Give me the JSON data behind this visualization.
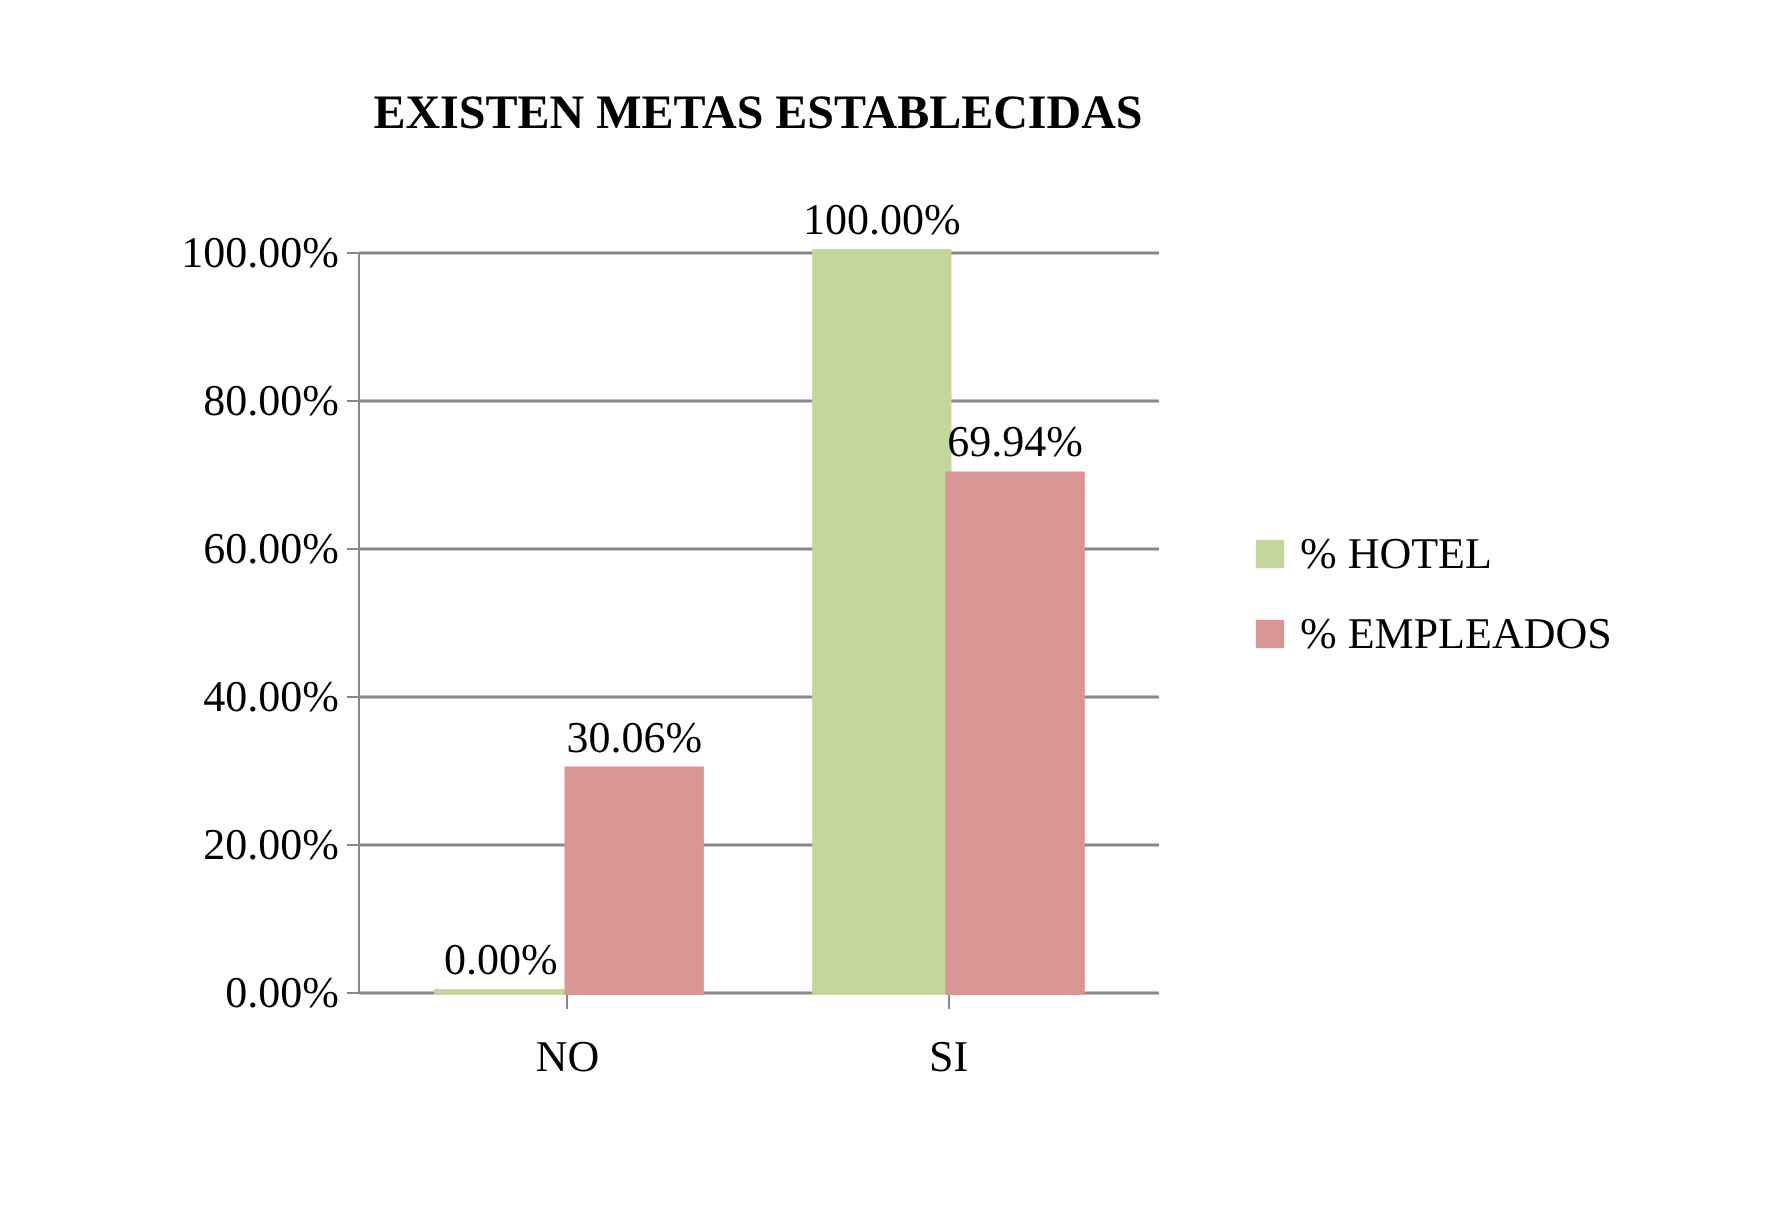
{
  "chart_data": {
    "type": "bar",
    "title": "EXISTEN METAS ESTABLECIDAS",
    "categories": [
      "NO",
      "SI"
    ],
    "series": [
      {
        "name": "% HOTEL",
        "color": "#c3d69b",
        "values": [
          0,
          100
        ],
        "value_labels": [
          "0.00%",
          "100.00%"
        ]
      },
      {
        "name": "% EMPLEADOS",
        "color": "#d99694",
        "values": [
          30.06,
          69.94
        ],
        "value_labels": [
          "30.06%",
          "69.94%"
        ]
      }
    ],
    "ylim": [
      0,
      100
    ],
    "yticks": [
      {
        "value": 0,
        "label": "0.00%"
      },
      {
        "value": 20,
        "label": "20.00%"
      },
      {
        "value": 40,
        "label": "40.00%"
      },
      {
        "value": 60,
        "label": "60.00%"
      },
      {
        "value": 80,
        "label": "80.00%"
      },
      {
        "value": 100,
        "label": "100.00%"
      }
    ],
    "grid": "y",
    "legend": "right"
  }
}
